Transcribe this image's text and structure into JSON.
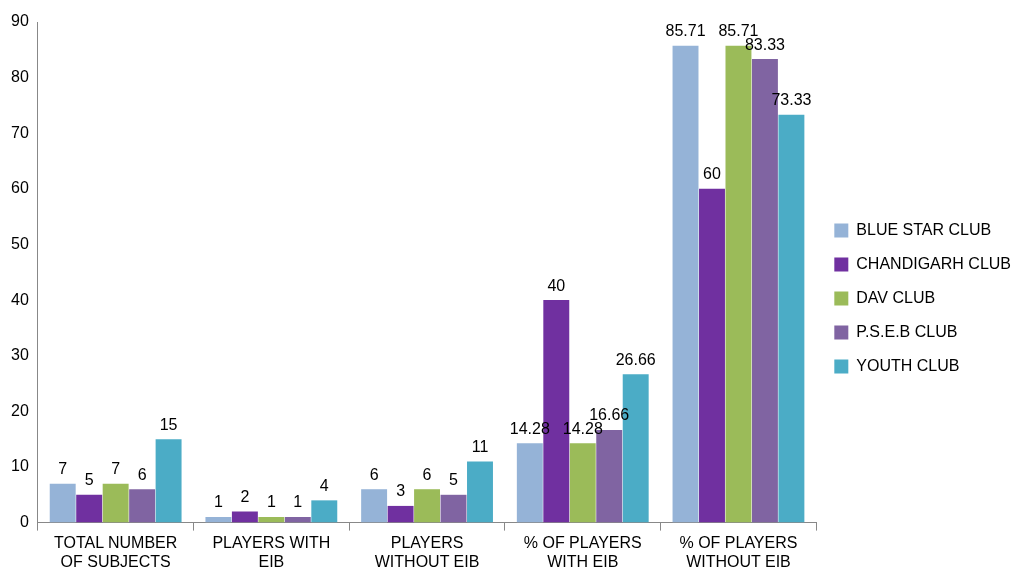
{
  "chart_data": {
    "type": "bar",
    "categories": [
      "TOTAL NUMBER OF SUBJECTS",
      "PLAYERS WITH EIB",
      "PLAYERS WITHOUT EIB",
      "% OF PLAYERS WITH EIB",
      "% OF PLAYERS WITHOUT EIB"
    ],
    "series": [
      {
        "name": "BLUE STAR CLUB",
        "color": "#95b3d7",
        "values": [
          7,
          1,
          6,
          14.28,
          85.71
        ]
      },
      {
        "name": "CHANDIGARH CLUB",
        "color": "#7030a0",
        "values": [
          5,
          2,
          3,
          40,
          60
        ]
      },
      {
        "name": "DAV CLUB",
        "color": "#9bbb59",
        "values": [
          7,
          1,
          6,
          14.28,
          85.71
        ]
      },
      {
        "name": "P.S.E.B CLUB",
        "color": "#8064a2",
        "values": [
          6,
          1,
          5,
          16.66,
          83.33
        ]
      },
      {
        "name": "YOUTH CLUB",
        "color": "#4bacc6",
        "values": [
          15,
          4,
          11,
          26.66,
          73.33
        ]
      }
    ],
    "ylim": [
      0,
      90
    ],
    "yticks": [
      0,
      10,
      20,
      30,
      40,
      50,
      60,
      70,
      80,
      90
    ],
    "grid": false,
    "legend": "right",
    "data_labels": true
  }
}
